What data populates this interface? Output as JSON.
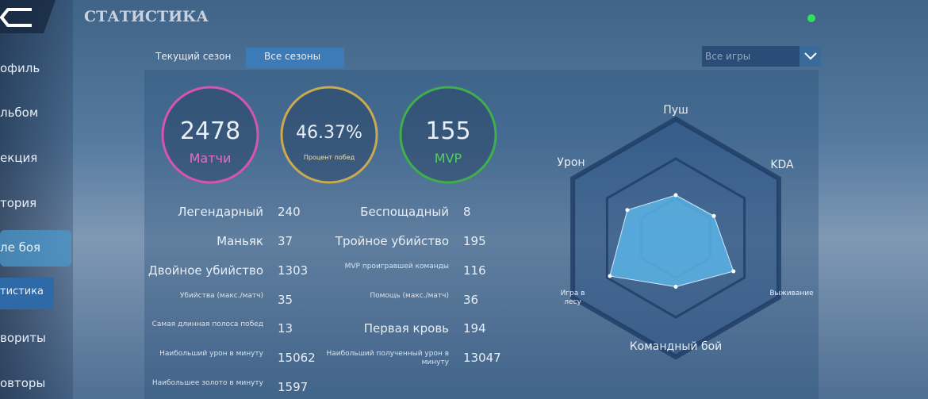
{
  "header": {
    "title": "СТАТИСТИКА"
  },
  "sidebar": {
    "items": [
      "офиль",
      "льбом",
      "екция",
      "тория",
      "ле боя",
      "тистика",
      "вориты",
      "овторы"
    ]
  },
  "tabs": [
    "Текущий сезон",
    "Все сезоны"
  ],
  "filter": "Все игры",
  "summary": [
    {
      "value": "2478",
      "label": "Матчи"
    },
    {
      "value": "46.37%",
      "label": "Процент побед"
    },
    {
      "value": "155",
      "label": "MVP"
    }
  ],
  "stats_left": [
    [
      "Легендарный",
      "240"
    ],
    [
      "Маньяк",
      "37"
    ],
    [
      "Двойное убийство",
      "1303"
    ],
    [
      "Убийства (макс./матч)",
      "35"
    ],
    [
      "Самая длинная полоса побед",
      "13"
    ],
    [
      "Наибольший урон в минуту",
      "15062"
    ],
    [
      "Наибольшее золото в минуту",
      "1597"
    ]
  ],
  "stats_right": [
    [
      "Беспощадный",
      "8"
    ],
    [
      "Тройное убийство",
      "195"
    ],
    [
      "MVP проигравшей команды",
      "116"
    ],
    [
      "Помощь (макс./матч)",
      "36"
    ],
    [
      "Первая кровь",
      "194"
    ],
    [
      "Наибольший полученный урон в минуту",
      "13047"
    ]
  ],
  "chart_data": {
    "type": "radar",
    "categories": [
      "Пуш",
      "KDA",
      "Выживание",
      "Командный бой",
      "Игра в лесу",
      "Урон"
    ],
    "values": [
      36,
      37,
      56,
      41,
      64,
      47
    ],
    "rlim": [
      0,
      100
    ],
    "color": "#5ab4e6"
  }
}
